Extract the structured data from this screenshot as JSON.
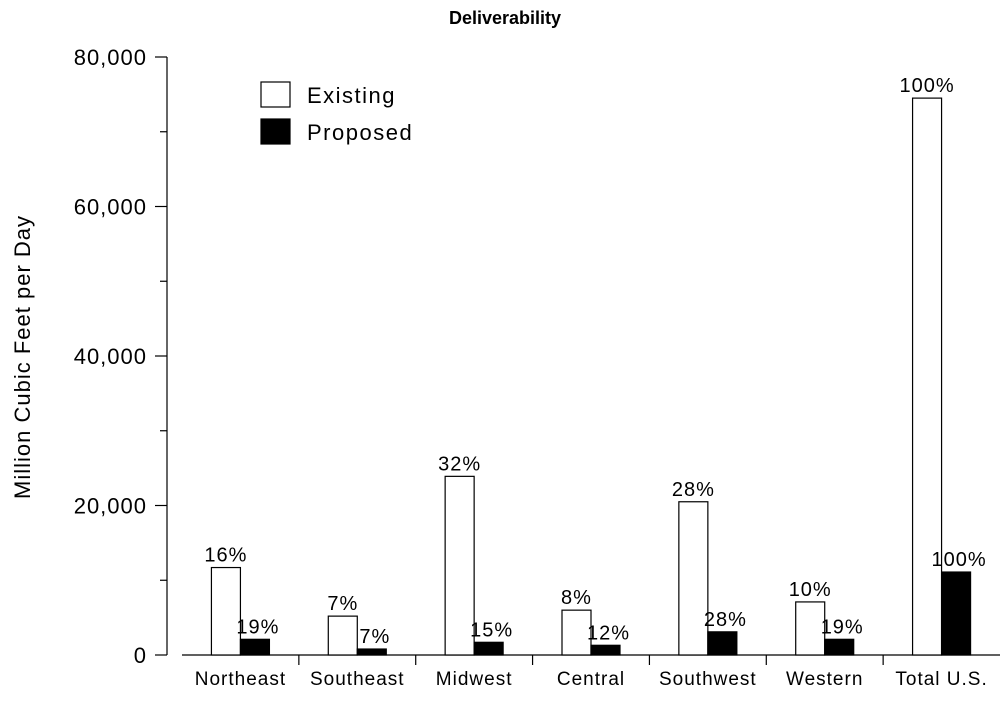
{
  "chart_data": {
    "type": "bar",
    "title": "Deliverability",
    "ylabel": "Million Cubic Feet per Day",
    "xlabel": "",
    "ylim": [
      0,
      80000
    ],
    "yticks": [
      0,
      20000,
      40000,
      60000,
      80000
    ],
    "ytick_labels": [
      "0",
      "20,000",
      "40,000",
      "60,000",
      "80,000"
    ],
    "grid": false,
    "legend_position": "top-left",
    "categories": [
      "Northeast",
      "Southeast",
      "Midwest",
      "Central",
      "Southwest",
      "Western",
      "Total U.S."
    ],
    "series": [
      {
        "name": "Existing",
        "color": "#ffffff",
        "values": [
          11700,
          5200,
          23900,
          6000,
          20500,
          7100,
          74500
        ],
        "labels": [
          "16%",
          "7%",
          "32%",
          "8%",
          "28%",
          "10%",
          "100%"
        ]
      },
      {
        "name": "Proposed",
        "color": "#000000",
        "values": [
          2100,
          800,
          1700,
          1300,
          3100,
          2100,
          11100
        ],
        "labels": [
          "19%",
          "7%",
          "15%",
          "12%",
          "28%",
          "19%",
          "100%"
        ]
      }
    ]
  }
}
